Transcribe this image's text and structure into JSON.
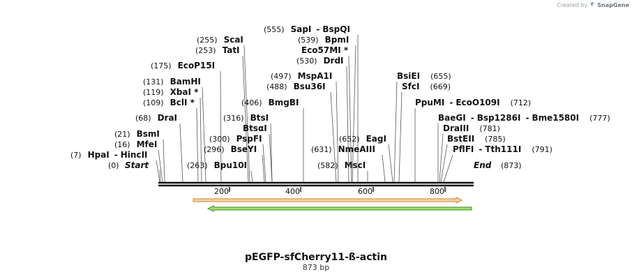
{
  "credit": {
    "prefix": "Created by",
    "brand": "SnapGene"
  },
  "title": "pEGFP-sfCherry11-ß-actin",
  "subtitle": "873 bp",
  "sequence_length": 873,
  "ruler_ticks": [
    "200",
    "400",
    "600",
    "800"
  ],
  "termini": [
    {
      "pos": "(0)",
      "label": "Start"
    },
    {
      "label": "End",
      "pos": "(873)"
    }
  ],
  "sites": [
    {
      "pos": "(7)",
      "names": [
        "HpaI",
        "HincII"
      ]
    },
    {
      "pos": "(16)",
      "names": [
        "MfeI"
      ]
    },
    {
      "pos": "(21)",
      "names": [
        "BsmI"
      ]
    },
    {
      "pos": "(68)",
      "names": [
        "DraI"
      ]
    },
    {
      "pos": "(109)",
      "names": [
        "BclI *"
      ]
    },
    {
      "pos": "(119)",
      "names": [
        "XbaI *"
      ]
    },
    {
      "pos": "(131)",
      "names": [
        "BamHI"
      ]
    },
    {
      "pos": "(175)",
      "names": [
        "EcoP15I"
      ]
    },
    {
      "pos": "(253)",
      "names": [
        "TatI"
      ]
    },
    {
      "pos": "(255)",
      "names": [
        "ScaI"
      ]
    },
    {
      "pos": "(263)",
      "names": [
        "Bpu10I"
      ]
    },
    {
      "pos": "(296)",
      "names": [
        "BseYI"
      ]
    },
    {
      "pos": "(300)",
      "names": [
        "PspFI"
      ]
    },
    {
      "pos": "(316)",
      "names": [
        "BtsI"
      ]
    },
    {
      "pos": "",
      "names": [
        "BtsαI"
      ]
    },
    {
      "pos": "(406)",
      "names": [
        "BmgBI"
      ]
    },
    {
      "pos": "(488)",
      "names": [
        "Bsu36I"
      ]
    },
    {
      "pos": "(497)",
      "names": [
        "MspA1I"
      ]
    },
    {
      "pos": "(530)",
      "names": [
        "DrdI"
      ]
    },
    {
      "pos": "",
      "names": [
        "Eco57MI *"
      ]
    },
    {
      "pos": "(539)",
      "names": [
        "BpmI"
      ]
    },
    {
      "pos": "(555)",
      "names": [
        "SapI",
        "BspQI"
      ]
    },
    {
      "pos": "(582)",
      "names": [
        "MscI"
      ]
    },
    {
      "pos": "(631)",
      "names": [
        "NmeAIII"
      ]
    },
    {
      "pos": "(652)",
      "names": [
        "EagI"
      ]
    },
    {
      "pos": "(655)",
      "names": [
        "BsiEI"
      ]
    },
    {
      "pos": "(669)",
      "names": [
        "SfcI"
      ]
    },
    {
      "pos": "(712)",
      "names": [
        "PpuMI",
        "EcoO109I"
      ]
    },
    {
      "pos": "(777)",
      "names": [
        "BaeGI",
        "Bsp1286I",
        "Bme1580I"
      ]
    },
    {
      "pos": "(781)",
      "names": [
        "DraIII"
      ]
    },
    {
      "pos": "(785)",
      "names": [
        "BstEII"
      ]
    },
    {
      "pos": "(791)",
      "names": [
        "PflFI",
        "Tth111I"
      ]
    }
  ],
  "features": [
    {
      "name": "orange-feature",
      "start": 100,
      "end": 873,
      "strand": "forward",
      "fill": "#f8d4a8",
      "stroke": "#c9802f"
    },
    {
      "name": "green-feature",
      "start": 140,
      "end": 873,
      "strand": "reverse",
      "fill": "#9be36a",
      "stroke": "#4a8a2a"
    }
  ],
  "colors": {
    "backbone": "#111111",
    "text": "#111111",
    "credit": "#9aa0a6"
  }
}
